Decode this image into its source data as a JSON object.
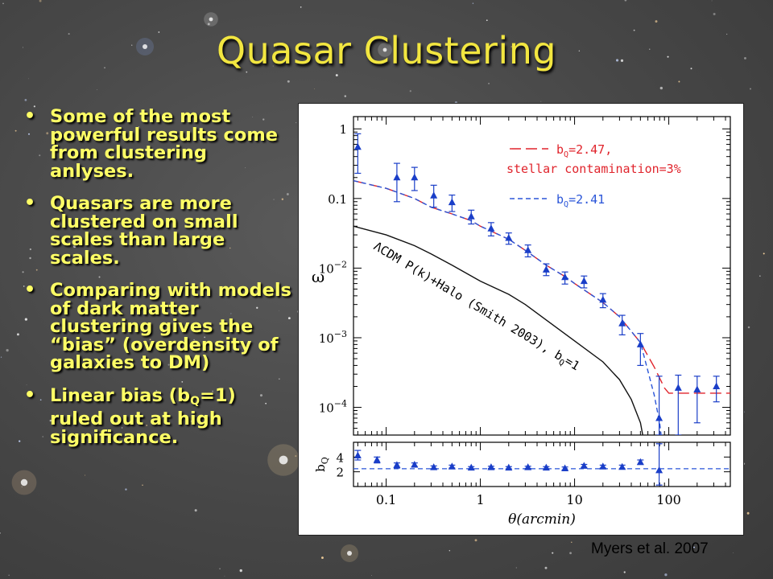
{
  "slide": {
    "title": "Quasar Clustering",
    "bullets": [
      {
        "text": "Some of the most powerful results come from clustering anlyses."
      },
      {
        "text": "Quasars are more clustered on small scales than large scales."
      },
      {
        "text": "Comparing with models of dark matter clustering gives the “bias” (overdensity of galaxies to DM)"
      },
      {
        "text_before": "Linear bias (b",
        "sub": "Q",
        "text_after": "=1) ruled out at high significance."
      }
    ],
    "credit": "Myers et al. 2007"
  },
  "colors": {
    "title": "#f2e640",
    "bullet_text": "#ffff66",
    "points": "#1a3ec8",
    "red_model": "#e0242c",
    "blue_model": "#2a55d8",
    "dm_model": "#111111"
  },
  "chart_data": [
    {
      "panel": "correlation function",
      "type": "scatter",
      "xscale": "log",
      "yscale": "log",
      "xlim": [
        0.045,
        450
      ],
      "ylim": [
        4e-05,
        1.5
      ],
      "xlabel": "θ(arcmin)",
      "ylabel": "ω",
      "xticks": [
        {
          "v": 0.1,
          "label": "0.1"
        },
        {
          "v": 1,
          "label": "1"
        },
        {
          "v": 10,
          "label": "10"
        },
        {
          "v": 100,
          "label": "100"
        }
      ],
      "yticks": [
        {
          "v": 1,
          "mant": "1",
          "exp": ""
        },
        {
          "v": 0.1,
          "mant": "0.1",
          "exp": ""
        },
        {
          "v": 0.01,
          "mant": "10",
          "exp": "−2"
        },
        {
          "v": 0.001,
          "mant": "10",
          "exp": "−3"
        },
        {
          "v": 0.0001,
          "mant": "10",
          "exp": "−4"
        }
      ],
      "points": [
        {
          "x": 0.05,
          "y": 0.55,
          "lo": 0.23,
          "hi": 0.85
        },
        {
          "x": 0.13,
          "y": 0.2,
          "lo": 0.09,
          "hi": 0.32
        },
        {
          "x": 0.2,
          "y": 0.2,
          "lo": 0.13,
          "hi": 0.28
        },
        {
          "x": 0.32,
          "y": 0.11,
          "lo": 0.075,
          "hi": 0.155
        },
        {
          "x": 0.5,
          "y": 0.088,
          "lo": 0.065,
          "hi": 0.112
        },
        {
          "x": 0.8,
          "y": 0.055,
          "lo": 0.043,
          "hi": 0.068
        },
        {
          "x": 1.3,
          "y": 0.037,
          "lo": 0.029,
          "hi": 0.045
        },
        {
          "x": 2.0,
          "y": 0.027,
          "lo": 0.022,
          "hi": 0.032
        },
        {
          "x": 3.2,
          "y": 0.018,
          "lo": 0.0145,
          "hi": 0.0215
        },
        {
          "x": 5.0,
          "y": 0.0095,
          "lo": 0.0078,
          "hi": 0.0115
        },
        {
          "x": 7.9,
          "y": 0.0074,
          "lo": 0.0059,
          "hi": 0.0088
        },
        {
          "x": 12.6,
          "y": 0.0065,
          "lo": 0.0052,
          "hi": 0.0077
        },
        {
          "x": 20,
          "y": 0.0035,
          "lo": 0.0027,
          "hi": 0.0043
        },
        {
          "x": 32,
          "y": 0.0016,
          "lo": 0.0011,
          "hi": 0.0021
        },
        {
          "x": 50,
          "y": 0.0008,
          "lo": 0.0004,
          "hi": 0.00115
        },
        {
          "x": 79,
          "y": 7e-05,
          "lo": 4e-05,
          "hi": 0.00028
        },
        {
          "x": 126,
          "y": 0.00019,
          "lo": 4e-05,
          "hi": 0.00029
        },
        {
          "x": 200,
          "y": 0.00018,
          "lo": 6e-05,
          "hi": 0.00028
        },
        {
          "x": 320,
          "y": 0.0002,
          "lo": 0.00012,
          "hi": 0.00028
        }
      ],
      "series": [
        {
          "name": "b_Q=2.47, stellar contamination=3%",
          "style": "long-dash",
          "color": "red_model",
          "x": [
            0.045,
            0.1,
            0.2,
            0.3,
            0.5,
            0.8,
            1,
            2,
            3,
            5,
            8,
            10,
            20,
            30,
            50,
            70,
            90,
            100,
            200,
            450
          ],
          "y": [
            0.18,
            0.14,
            0.1,
            0.075,
            0.06,
            0.048,
            0.04,
            0.026,
            0.018,
            0.011,
            0.0075,
            0.006,
            0.0032,
            0.002,
            0.00085,
            0.00038,
            0.00019,
            0.00016,
            0.00016,
            0.00016
          ]
        },
        {
          "name": "b_Q=2.41",
          "style": "short-dash",
          "color": "blue_model",
          "x": [
            0.045,
            0.1,
            0.2,
            0.3,
            0.5,
            0.8,
            1,
            2,
            3,
            5,
            8,
            10,
            20,
            30,
            50,
            70,
            80,
            85
          ],
          "y": [
            0.18,
            0.14,
            0.1,
            0.075,
            0.06,
            0.048,
            0.04,
            0.026,
            0.018,
            0.011,
            0.0075,
            0.006,
            0.0032,
            0.002,
            0.00085,
            0.00015,
            6e-05,
            3e-05
          ]
        },
        {
          "name": "ΛCDM P(k)+Halo (Smith 2003), b_Q=1",
          "style": "solid",
          "color": "dm_model",
          "x": [
            0.045,
            0.1,
            0.2,
            0.3,
            0.5,
            1,
            2,
            3,
            5,
            10,
            20,
            30,
            40,
            50,
            55
          ],
          "y": [
            0.04,
            0.03,
            0.021,
            0.016,
            0.011,
            0.0065,
            0.0042,
            0.003,
            0.0018,
            0.0009,
            0.00045,
            0.00025,
            0.00013,
            6e-05,
            3e-05
          ]
        }
      ],
      "legend": [
        {
          "style": "long-dash",
          "color": "red_model",
          "text_b": "b",
          "text_sub": "Q",
          "text_rest": "=2.47,",
          "line2": "stellar contamination=3%"
        },
        {
          "style": "short-dash",
          "color": "blue_model",
          "text_b": "b",
          "text_sub": "Q",
          "text_rest": "=2.41"
        }
      ],
      "legend_position": "top-right",
      "annotation": {
        "text": "ΛCDM P(k)+Halo (Smith 2003), b",
        "sub": "Q",
        "rest": "=1"
      }
    },
    {
      "panel": "bias",
      "type": "scatter",
      "xscale": "log",
      "xlim": [
        0.045,
        450
      ],
      "ylim": [
        0,
        6
      ],
      "ylabel_b": "b",
      "ylabel_sub": "Q",
      "yticks": [
        {
          "v": 2,
          "label": "2"
        },
        {
          "v": 4,
          "label": "4"
        }
      ],
      "reference_line": 2.41,
      "points": [
        {
          "x": 0.05,
          "y": 4.2,
          "lo": 3.6,
          "hi": 4.9
        },
        {
          "x": 0.08,
          "y": 3.6,
          "lo": 3.2,
          "hi": 4.0
        },
        {
          "x": 0.13,
          "y": 2.9,
          "lo": 2.5,
          "hi": 3.2
        },
        {
          "x": 0.2,
          "y": 2.95,
          "lo": 2.7,
          "hi": 3.2
        },
        {
          "x": 0.32,
          "y": 2.6,
          "lo": 2.4,
          "hi": 2.8
        },
        {
          "x": 0.5,
          "y": 2.7,
          "lo": 2.5,
          "hi": 2.9
        },
        {
          "x": 0.8,
          "y": 2.55,
          "lo": 2.4,
          "hi": 2.7
        },
        {
          "x": 1.3,
          "y": 2.6,
          "lo": 2.45,
          "hi": 2.75
        },
        {
          "x": 2.0,
          "y": 2.55,
          "lo": 2.4,
          "hi": 2.7
        },
        {
          "x": 3.2,
          "y": 2.6,
          "lo": 2.45,
          "hi": 2.75
        },
        {
          "x": 5.0,
          "y": 2.55,
          "lo": 2.4,
          "hi": 2.7
        },
        {
          "x": 7.9,
          "y": 2.45,
          "lo": 2.25,
          "hi": 2.65
        },
        {
          "x": 12.6,
          "y": 2.8,
          "lo": 2.6,
          "hi": 3.0
        },
        {
          "x": 20,
          "y": 2.7,
          "lo": 2.5,
          "hi": 2.9
        },
        {
          "x": 32,
          "y": 2.65,
          "lo": 2.4,
          "hi": 2.9
        },
        {
          "x": 50,
          "y": 3.3,
          "lo": 3.0,
          "hi": 3.6
        },
        {
          "x": 79,
          "y": 2.2,
          "lo": 0.2,
          "hi": 5.8
        }
      ]
    }
  ]
}
